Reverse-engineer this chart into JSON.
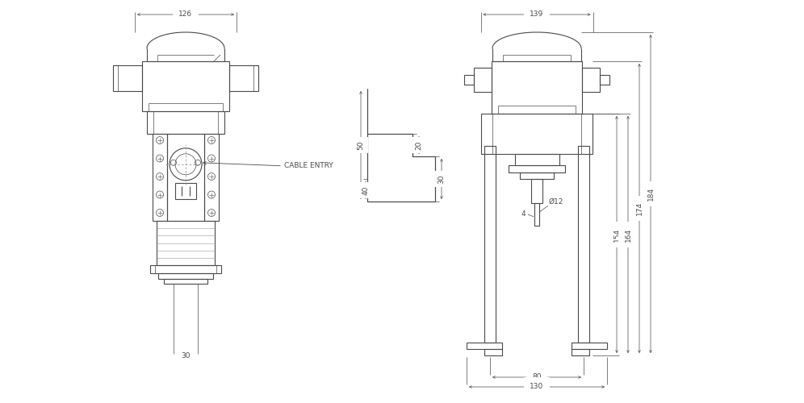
{
  "bg_color": "#ffffff",
  "line_color": "#4a4a4a",
  "dim_color": "#4a4a4a",
  "thin_lw": 0.5,
  "medium_lw": 0.8,
  "thick_lw": 1.1,
  "font_size": 6.5,
  "dims": {
    "top_width_left": "126",
    "top_width_right": "139",
    "height_154": "154",
    "height_164": "164",
    "height_174": "174",
    "height_184": "184",
    "bottom_30": "30",
    "bottom_80": "80",
    "bottom_130": "130",
    "d20": "20",
    "d30": "30",
    "d40": "40",
    "d50": "50",
    "diam_12": "Ø12",
    "dim_4": "4",
    "cable_entry": "CABLE ENTRY"
  }
}
